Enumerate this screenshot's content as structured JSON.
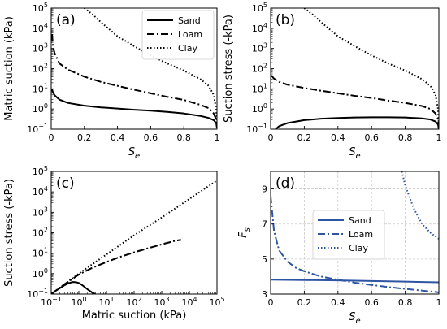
{
  "chart_data": [
    {
      "panel": "(a)",
      "type": "line",
      "xlabel": "S_e",
      "ylabel": "Matric suction (kPa)",
      "xscale": "linear",
      "yscale": "log",
      "xlim": [
        0,
        1
      ],
      "ylim": [
        0.1,
        100000
      ],
      "xticks": [
        "0",
        "0.2",
        "0.4",
        "0.6",
        "0.8",
        "1"
      ],
      "yticks": [
        "10^-1",
        "10^0",
        "10^1",
        "10^2",
        "10^3",
        "10^4",
        "10^5"
      ],
      "grid": false,
      "legend": {
        "placement": "top-right",
        "entries": [
          "Sand",
          "Loam",
          "Clay"
        ]
      },
      "series": [
        {
          "name": "Sand",
          "style": "solid",
          "color": "#000000",
          "x": [
            0.002,
            0.01,
            0.02,
            0.05,
            0.1,
            0.2,
            0.3,
            0.4,
            0.5,
            0.6,
            0.7,
            0.8,
            0.9,
            0.95,
            0.98,
            0.995,
            1.0
          ],
          "y": [
            10,
            7.0,
            4.8,
            2.9,
            2.0,
            1.45,
            1.2,
            1.05,
            0.92,
            0.82,
            0.72,
            0.6,
            0.45,
            0.36,
            0.28,
            0.2,
            0.12
          ]
        },
        {
          "name": "Loam",
          "style": "dashdot",
          "color": "#000000",
          "x": [
            0.005,
            0.01,
            0.02,
            0.05,
            0.1,
            0.2,
            0.3,
            0.4,
            0.5,
            0.6,
            0.7,
            0.8,
            0.9,
            0.95,
            0.98,
            0.995,
            1.0
          ],
          "y": [
            5000,
            1500,
            600,
            180,
            90,
            40,
            22,
            14,
            9,
            6,
            4,
            2.8,
            1.6,
            1.1,
            0.6,
            0.3,
            0.12
          ]
        },
        {
          "name": "Clay",
          "style": "dotted",
          "color": "#000000",
          "x": [
            0.2,
            0.25,
            0.3,
            0.4,
            0.5,
            0.6,
            0.7,
            0.8,
            0.9,
            0.95,
            0.98,
            0.995,
            1.0
          ],
          "y": [
            100000,
            48000,
            20000,
            4000,
            1300,
            450,
            180,
            80,
            30,
            14,
            5,
            1,
            0.12
          ]
        }
      ]
    },
    {
      "panel": "(b)",
      "type": "line",
      "xlabel": "S_e",
      "ylabel": "Suction stress (-kPa)",
      "xscale": "linear",
      "yscale": "log",
      "xlim": [
        0,
        1
      ],
      "ylim": [
        0.1,
        100000
      ],
      "xticks": [
        "0",
        "0.2",
        "0.4",
        "0.6",
        "0.8",
        "1"
      ],
      "yticks": [
        "10^-1",
        "10^0",
        "10^1",
        "10^2",
        "10^3",
        "10^4",
        "10^5"
      ],
      "grid": false,
      "series": [
        {
          "name": "Sand",
          "style": "solid",
          "color": "#000000",
          "x": [
            0.03,
            0.05,
            0.1,
            0.2,
            0.3,
            0.4,
            0.5,
            0.6,
            0.7,
            0.8,
            0.9,
            0.95,
            0.98,
            0.995,
            1.0
          ],
          "y": [
            0.1,
            0.14,
            0.2,
            0.28,
            0.33,
            0.36,
            0.38,
            0.39,
            0.39,
            0.38,
            0.34,
            0.3,
            0.24,
            0.17,
            0.1
          ]
        },
        {
          "name": "Loam",
          "style": "dashdot",
          "color": "#000000",
          "x": [
            0.005,
            0.01,
            0.02,
            0.05,
            0.1,
            0.2,
            0.3,
            0.4,
            0.5,
            0.6,
            0.7,
            0.8,
            0.9,
            0.95,
            0.98,
            0.995,
            1.0
          ],
          "y": [
            45,
            40,
            32,
            22,
            16,
            11,
            8,
            6,
            4.5,
            3.5,
            2.6,
            2,
            1.4,
            1,
            0.6,
            0.3,
            0.12
          ]
        },
        {
          "name": "Clay",
          "style": "dotted",
          "color": "#000000",
          "x": [
            0.2,
            0.25,
            0.3,
            0.4,
            0.5,
            0.6,
            0.7,
            0.8,
            0.9,
            0.95,
            0.98,
            0.995,
            1.0
          ],
          "y": [
            100000,
            48000,
            20000,
            4000,
            1300,
            450,
            180,
            80,
            30,
            14,
            5,
            1,
            0.12
          ]
        }
      ]
    },
    {
      "panel": "(c)",
      "type": "line",
      "xlabel": "Matric suction (kPa)",
      "ylabel": "Suction stress (-kPa)",
      "xscale": "log",
      "yscale": "log",
      "xlim": [
        0.1,
        100000
      ],
      "ylim": [
        0.1,
        100000
      ],
      "xticks": [
        "10^-1",
        "10^0",
        "10^1",
        "10^2",
        "10^3",
        "10^4",
        "10^5"
      ],
      "yticks": [
        "10^-1",
        "10^0",
        "10^1",
        "10^2",
        "10^3",
        "10^4",
        "10^5"
      ],
      "grid": false,
      "series": [
        {
          "name": "Sand",
          "style": "solid",
          "color": "#000000",
          "x": [
            0.1,
            0.15,
            0.2,
            0.3,
            0.45,
            0.6,
            0.8,
            1.0,
            1.3,
            1.7,
            2.2,
            3.0,
            4.0
          ],
          "y": [
            0.1,
            0.15,
            0.19,
            0.27,
            0.35,
            0.39,
            0.38,
            0.35,
            0.28,
            0.21,
            0.16,
            0.12,
            0.1
          ]
        },
        {
          "name": "Loam",
          "style": "dashdot",
          "color": "#000000",
          "x": [
            0.1,
            0.3,
            1,
            3,
            10,
            30,
            100,
            300,
            1000,
            3000,
            5000
          ],
          "y": [
            0.1,
            0.3,
            0.9,
            1.9,
            3.7,
            6.5,
            11,
            17,
            27,
            40,
            45
          ]
        },
        {
          "name": "Clay",
          "style": "dotted",
          "color": "#000000",
          "x": [
            0.1,
            1,
            10,
            100,
            1000,
            10000,
            100000
          ],
          "y": [
            0.1,
            1,
            8.7,
            75,
            560,
            4500,
            36000
          ]
        }
      ]
    },
    {
      "panel": "(d)",
      "type": "line",
      "xlabel": "S_e",
      "ylabel": "F_s",
      "xscale": "linear",
      "yscale": "linear",
      "xlim": [
        0,
        1
      ],
      "ylim": [
        3,
        10
      ],
      "xticks": [
        "0",
        "0.2",
        "0.4",
        "0.6",
        "0.8",
        "1"
      ],
      "yticks": [
        "3",
        "5",
        "7",
        "9"
      ],
      "grid": true,
      "legend": {
        "placement": "upper-left",
        "entries": [
          "Sand",
          "Loam",
          "Clay"
        ]
      },
      "series": [
        {
          "name": "Sand",
          "style": "solid",
          "color": "#2e55a3",
          "x": [
            0,
            0.2,
            0.4,
            0.6,
            0.8,
            1.0
          ],
          "y": [
            3.82,
            3.8,
            3.78,
            3.75,
            3.71,
            3.67
          ]
        },
        {
          "name": "Loam",
          "style": "dashdot",
          "color": "#2e55a3",
          "x": [
            0.0,
            0.02,
            0.05,
            0.1,
            0.15,
            0.2,
            0.3,
            0.4,
            0.5,
            0.6,
            0.7,
            0.8,
            0.9,
            1.0
          ],
          "y": [
            8.6,
            6.6,
            5.5,
            4.85,
            4.5,
            4.3,
            4.0,
            3.82,
            3.65,
            3.52,
            3.4,
            3.3,
            3.2,
            3.1
          ]
        },
        {
          "name": "Clay",
          "style": "dotted",
          "color": "#2e55a3",
          "x": [
            0.78,
            0.8,
            0.85,
            0.9,
            0.95,
            1.0
          ],
          "y": [
            10.0,
            9.2,
            7.9,
            7.0,
            6.5,
            6.15
          ]
        }
      ]
    }
  ]
}
